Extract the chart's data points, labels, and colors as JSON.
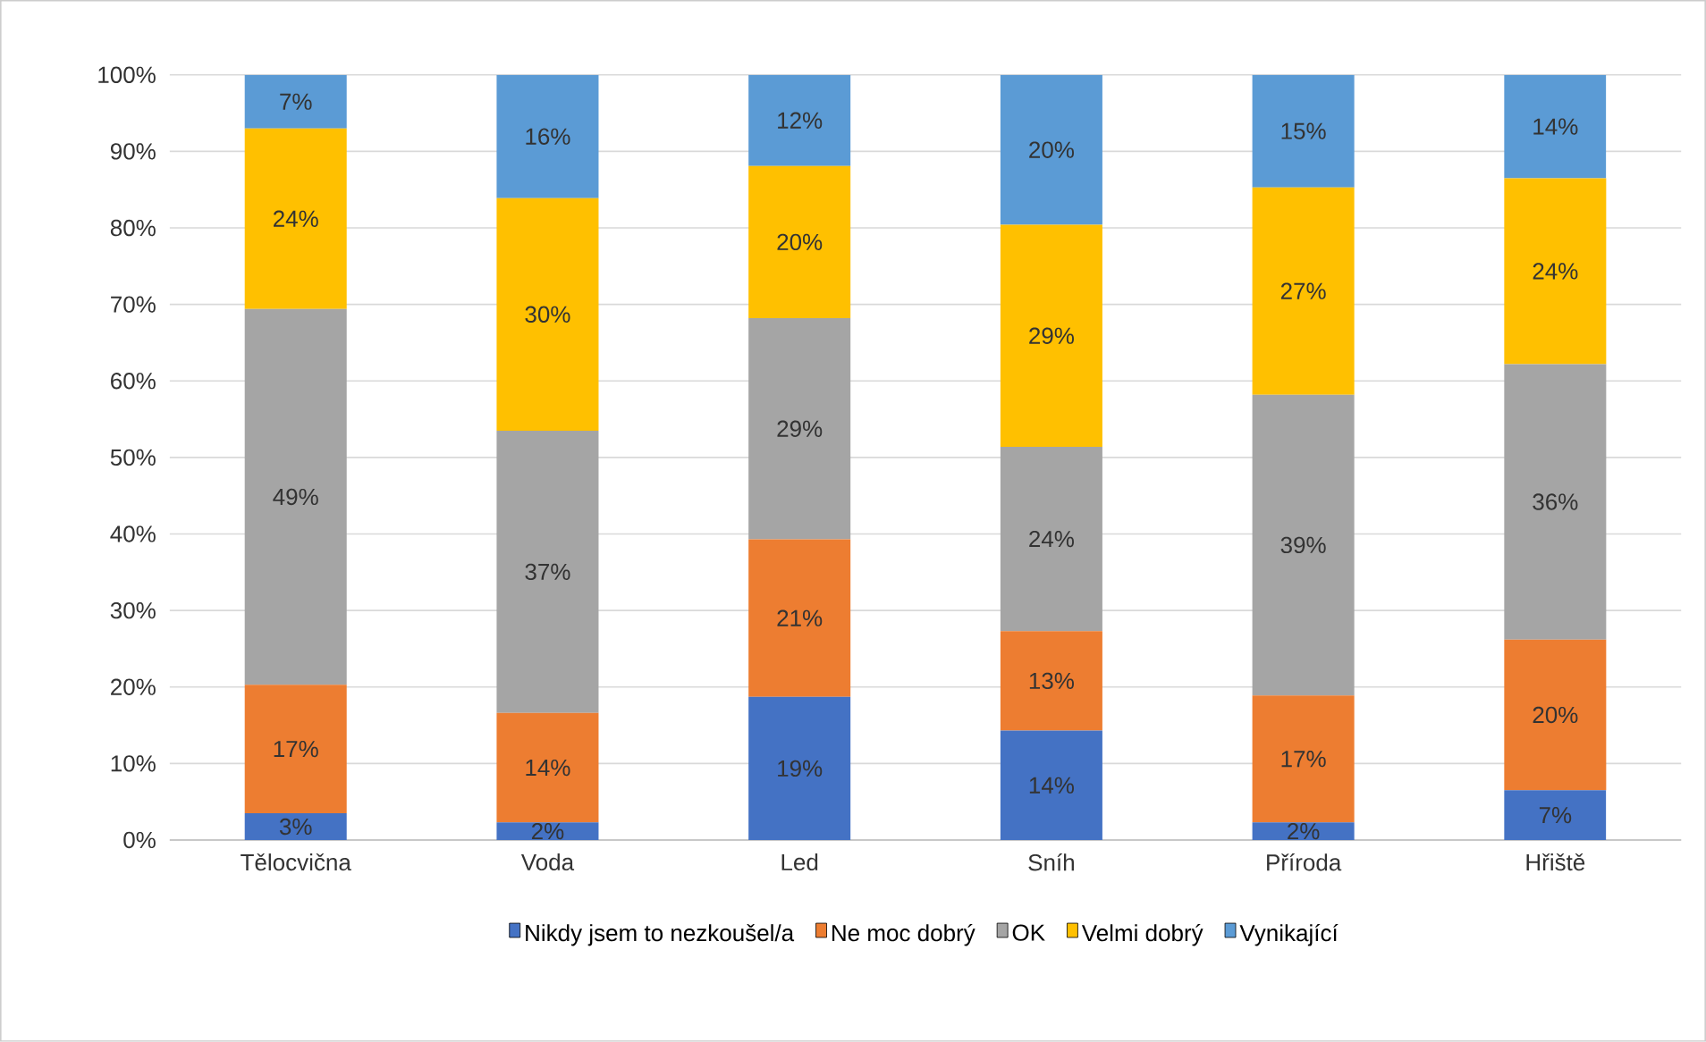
{
  "chart_data": {
    "type": "bar",
    "stacked": true,
    "categories": [
      "Tělocvična",
      "Voda",
      "Led",
      "Sníh",
      "Příroda",
      "Hřiště"
    ],
    "series": [
      {
        "name": "Nikdy jsem to nezkoušel/a",
        "color": "#4472c4",
        "values": [
          3.5,
          2.3,
          18.7,
          14.3,
          2.3,
          6.5
        ],
        "value_labels": [
          "3%",
          "2%",
          "19%",
          "14%",
          "2%",
          "7%"
        ]
      },
      {
        "name": "Ne moc dobrý",
        "color": "#ed7d31",
        "values": [
          16.8,
          14.3,
          20.6,
          13.0,
          16.6,
          19.7
        ],
        "value_labels": [
          "17%",
          "14%",
          "21%",
          "13%",
          "17%",
          "20%"
        ]
      },
      {
        "name": "OK",
        "color": "#a5a5a5",
        "values": [
          49.1,
          36.9,
          28.9,
          24.1,
          39.3,
          36.0
        ],
        "value_labels": [
          "49%",
          "37%",
          "29%",
          "24%",
          "39%",
          "36%"
        ]
      },
      {
        "name": "Velmi dobrý",
        "color": "#ffc000",
        "values": [
          23.6,
          30.4,
          19.9,
          29.0,
          27.1,
          24.3
        ],
        "value_labels": [
          "24%",
          "30%",
          "20%",
          "29%",
          "27%",
          "24%"
        ]
      },
      {
        "name": "Vynikající",
        "color": "#5b9bd5",
        "values": [
          7.0,
          16.1,
          11.9,
          19.6,
          14.7,
          13.5
        ],
        "value_labels": [
          "7%",
          "16%",
          "12%",
          "20%",
          "15%",
          "14%"
        ]
      }
    ],
    "ylim": [
      0,
      100
    ],
    "yticks": [
      {
        "value": 0,
        "label": "0%"
      },
      {
        "value": 10,
        "label": "10%"
      },
      {
        "value": 20,
        "label": "20%"
      },
      {
        "value": 30,
        "label": "30%"
      },
      {
        "value": 40,
        "label": "40%"
      },
      {
        "value": 50,
        "label": "50%"
      },
      {
        "value": 60,
        "label": "60%"
      },
      {
        "value": 70,
        "label": "70%"
      },
      {
        "value": 80,
        "label": "80%"
      },
      {
        "value": 90,
        "label": "90%"
      },
      {
        "value": 100,
        "label": "100%"
      }
    ],
    "grid": "y",
    "legend": "bottom"
  }
}
